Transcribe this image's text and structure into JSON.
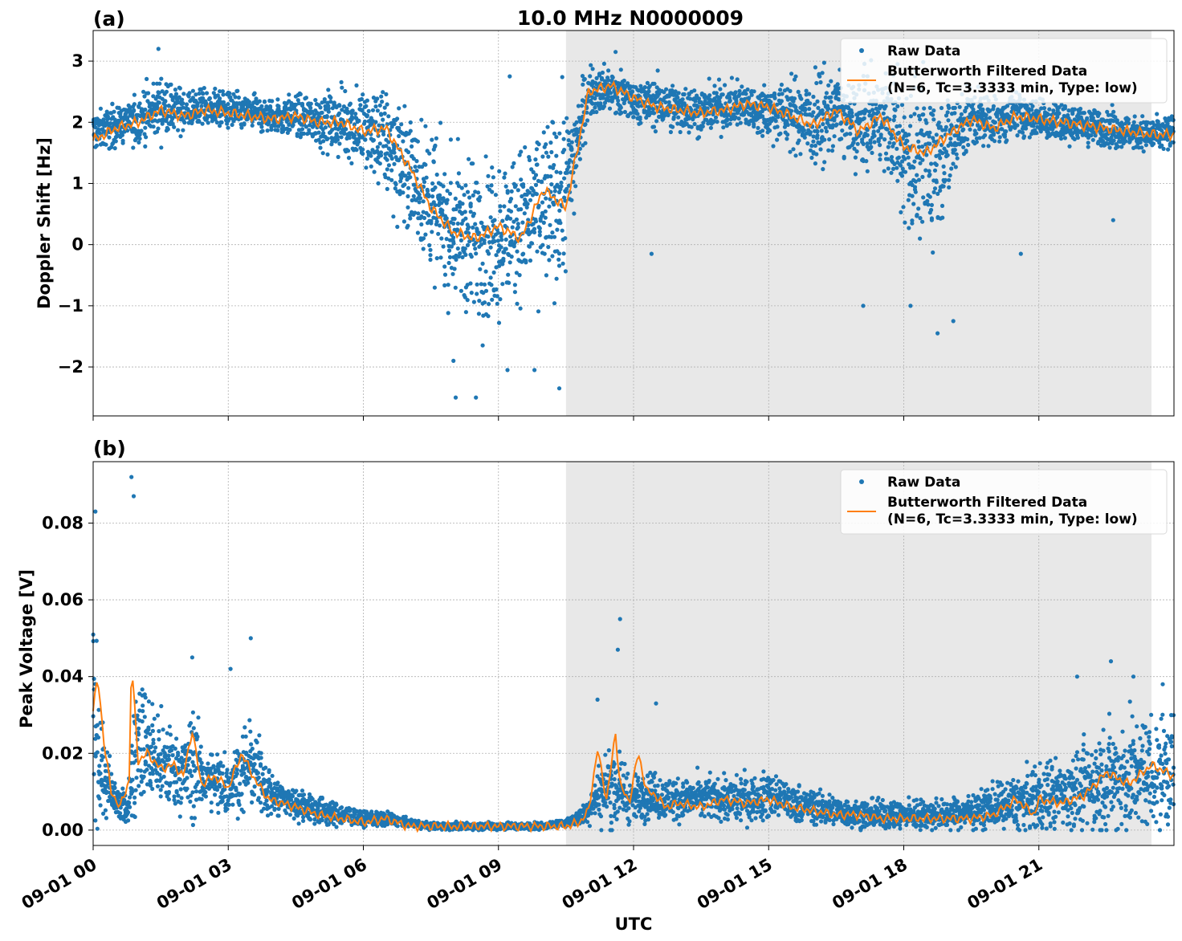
{
  "figure": {
    "title": "10.0 MHz N0000009",
    "xlabel": "UTC",
    "x_ticks": [
      "09-01 00",
      "09-01 03",
      "09-01 06",
      "09-01 09",
      "09-01 12",
      "09-01 15",
      "09-01 18",
      "09-01 21"
    ],
    "shaded_region_hours": [
      10.5,
      23.5
    ],
    "legend": {
      "raw_label": "Raw Data",
      "filtered_label_line1": "Butterworth Filtered Data",
      "filtered_label_line2": "(N=6, Tc=3.3333 min, Type: low)"
    },
    "colors": {
      "raw": "#1f77b4",
      "filtered": "#ff7f0e",
      "shade": "#e8e8e8",
      "grid": "#b0b0b0"
    }
  },
  "chart_data": [
    {
      "type": "scatter",
      "panel_label": "(a)",
      "title": "10.0 MHz N0000009",
      "xlabel": "",
      "ylabel": "Doppler Shift [Hz]",
      "xlim_hours": [
        0,
        24
      ],
      "ylim": [
        -2.8,
        3.5
      ],
      "y_ticks": [
        -2,
        -1,
        0,
        1,
        2,
        3
      ],
      "y_tick_labels": [
        "−2",
        "−1",
        "0",
        "1",
        "2",
        "3"
      ],
      "grid": true,
      "legend_position": "top-right",
      "series": [
        {
          "name": "Raw Data",
          "style": "points",
          "x_hours": [
            0,
            0.5,
            1,
            1.5,
            2,
            2.5,
            3,
            3.5,
            4,
            4.5,
            5,
            5.5,
            6,
            6.5,
            7,
            7.5,
            8,
            8.5,
            9,
            9.5,
            10,
            10.5,
            11,
            11.5,
            12,
            12.5,
            13,
            13.5,
            14,
            14.5,
            15,
            15.5,
            16,
            16.5,
            17,
            17.5,
            18,
            18.5,
            19,
            19.5,
            20,
            20.5,
            21,
            21.5,
            22,
            22.5,
            23,
            23.5,
            24
          ],
          "center": [
            1.85,
            1.95,
            2.05,
            2.25,
            2.2,
            2.25,
            2.2,
            2.15,
            2.1,
            2.1,
            2.05,
            2.0,
            1.9,
            1.7,
            1.2,
            0.7,
            0.25,
            0.15,
            0.1,
            0.35,
            0.6,
            0.9,
            2.5,
            2.55,
            2.35,
            2.3,
            2.25,
            2.2,
            2.25,
            2.25,
            2.2,
            2.15,
            2.0,
            2.2,
            1.9,
            2.1,
            1.6,
            1.3,
            1.7,
            2.1,
            2.0,
            2.15,
            2.05,
            2.0,
            1.95,
            1.9,
            1.85,
            1.8,
            1.8
          ],
          "spread": [
            0.35,
            0.35,
            0.4,
            0.5,
            0.35,
            0.3,
            0.3,
            0.3,
            0.3,
            0.35,
            0.45,
            0.55,
            0.7,
            0.9,
            1.1,
            1.2,
            1.3,
            1.3,
            1.3,
            1.3,
            1.4,
            1.5,
            0.4,
            0.4,
            0.4,
            0.45,
            0.4,
            0.4,
            0.4,
            0.4,
            0.5,
            0.6,
            0.8,
            0.6,
            0.8,
            0.7,
            1.2,
            1.4,
            1.0,
            0.6,
            0.5,
            0.4,
            0.35,
            0.35,
            0.35,
            0.3,
            0.3,
            0.3,
            0.3
          ],
          "outliers": [
            [
              1.45,
              3.2
            ],
            [
              8.05,
              -2.5
            ],
            [
              8.5,
              -2.5
            ],
            [
              8.0,
              -1.9
            ],
            [
              9.2,
              -2.05
            ],
            [
              10.35,
              -2.35
            ],
            [
              9.8,
              -2.05
            ],
            [
              9.25,
              2.75
            ],
            [
              11.6,
              3.15
            ],
            [
              12.4,
              -0.15
            ],
            [
              17.1,
              -1.0
            ],
            [
              18.15,
              -1.0
            ],
            [
              18.75,
              -1.45
            ],
            [
              19.1,
              -1.25
            ],
            [
              20.6,
              -0.15
            ],
            [
              22.65,
              0.4
            ]
          ]
        },
        {
          "name": "Butterworth Filtered Data",
          "style": "line",
          "x_hours": [
            0,
            0.5,
            1,
            1.5,
            2,
            2.5,
            3,
            3.5,
            4,
            4.5,
            5,
            5.5,
            6,
            6.5,
            7,
            7.5,
            8,
            8.5,
            9,
            9.5,
            10,
            10.5,
            11,
            11.5,
            12,
            12.5,
            13,
            13.5,
            14,
            14.5,
            15,
            15.5,
            16,
            16.5,
            17,
            17.5,
            18,
            18.5,
            19,
            19.5,
            20,
            20.5,
            21,
            21.5,
            22,
            22.5,
            23,
            23.5,
            24
          ],
          "y": [
            1.7,
            1.9,
            2.0,
            2.2,
            2.1,
            2.2,
            2.15,
            2.1,
            2.05,
            2.1,
            2.0,
            2.0,
            1.85,
            1.9,
            1.3,
            0.6,
            0.2,
            0.1,
            0.3,
            0.1,
            0.9,
            0.6,
            2.5,
            2.6,
            2.4,
            2.25,
            2.2,
            2.15,
            2.2,
            2.3,
            2.25,
            2.1,
            1.95,
            2.2,
            1.85,
            2.1,
            1.6,
            1.5,
            1.8,
            2.05,
            1.9,
            2.1,
            2.05,
            2.0,
            1.95,
            1.9,
            1.85,
            1.8,
            1.8
          ]
        }
      ]
    },
    {
      "type": "scatter",
      "panel_label": "(b)",
      "title": "",
      "xlabel": "UTC",
      "ylabel": "Peak Voltage [V]",
      "xlim_hours": [
        0,
        24
      ],
      "ylim": [
        -0.004,
        0.096
      ],
      "y_ticks": [
        0,
        0.02,
        0.04,
        0.06,
        0.08
      ],
      "y_tick_labels": [
        "0.00",
        "0.02",
        "0.04",
        "0.06",
        "0.08"
      ],
      "grid": true,
      "legend_position": "top-right",
      "series": [
        {
          "name": "Raw Data",
          "style": "points",
          "x_hours": [
            0,
            0.25,
            0.5,
            0.75,
            1,
            1.5,
            2,
            2.25,
            2.5,
            3,
            3.5,
            4,
            4.5,
            5,
            5.5,
            6,
            6.5,
            7,
            7.5,
            8,
            8.5,
            9,
            9.5,
            10,
            10.5,
            10.9,
            11.2,
            11.5,
            11.75,
            12,
            12.3,
            12.6,
            13,
            13.5,
            14,
            14.5,
            15,
            15.5,
            16,
            16.5,
            17,
            17.5,
            18,
            18.5,
            19,
            19.5,
            20,
            20.5,
            21,
            21.5,
            22,
            22.5,
            23,
            23.5,
            24
          ],
          "center": [
            0.03,
            0.012,
            0.008,
            0.005,
            0.025,
            0.017,
            0.015,
            0.018,
            0.013,
            0.012,
            0.017,
            0.009,
            0.007,
            0.005,
            0.004,
            0.003,
            0.003,
            0.002,
            0.001,
            0.001,
            0.001,
            0.001,
            0.001,
            0.001,
            0.002,
            0.004,
            0.009,
            0.012,
            0.01,
            0.008,
            0.01,
            0.008,
            0.008,
            0.008,
            0.008,
            0.008,
            0.009,
            0.007,
            0.006,
            0.005,
            0.004,
            0.004,
            0.004,
            0.004,
            0.004,
            0.005,
            0.006,
            0.007,
            0.008,
            0.01,
            0.011,
            0.013,
            0.014,
            0.015,
            0.016
          ],
          "spread": [
            0.025,
            0.012,
            0.006,
            0.004,
            0.02,
            0.012,
            0.01,
            0.015,
            0.008,
            0.009,
            0.012,
            0.006,
            0.005,
            0.004,
            0.003,
            0.002,
            0.002,
            0.001,
            0.001,
            0.001,
            0.001,
            0.001,
            0.001,
            0.001,
            0.001,
            0.003,
            0.008,
            0.012,
            0.009,
            0.006,
            0.008,
            0.006,
            0.006,
            0.006,
            0.006,
            0.006,
            0.007,
            0.005,
            0.005,
            0.004,
            0.004,
            0.004,
            0.004,
            0.004,
            0.004,
            0.005,
            0.006,
            0.008,
            0.009,
            0.011,
            0.012,
            0.014,
            0.016,
            0.016,
            0.017
          ],
          "outliers": [
            [
              0.05,
              0.083
            ],
            [
              0.85,
              0.092
            ],
            [
              0.9,
              0.087
            ],
            [
              2.2,
              0.045
            ],
            [
              3.05,
              0.042
            ],
            [
              3.5,
              0.05
            ],
            [
              11.7,
              0.055
            ],
            [
              11.65,
              0.047
            ],
            [
              11.2,
              0.034
            ],
            [
              12.5,
              0.033
            ],
            [
              13.7,
              0.015
            ],
            [
              21.85,
              0.04
            ],
            [
              22.6,
              0.044
            ],
            [
              23.1,
              0.04
            ],
            [
              23.75,
              0.038
            ]
          ]
        },
        {
          "name": "Butterworth Filtered Data",
          "style": "line",
          "x_hours": [
            0,
            0.1,
            0.25,
            0.4,
            0.6,
            0.8,
            0.85,
            1.0,
            1.2,
            1.5,
            1.8,
            2.0,
            2.2,
            2.4,
            2.7,
            3.0,
            3.3,
            3.6,
            3.9,
            4.2,
            4.5,
            5.0,
            5.5,
            6.0,
            6.5,
            7.0,
            7.5,
            8.0,
            8.5,
            9.0,
            9.5,
            10.0,
            10.5,
            10.8,
            11.0,
            11.2,
            11.4,
            11.6,
            11.7,
            11.9,
            12.1,
            12.3,
            12.5,
            12.7,
            13.0,
            13.5,
            14.0,
            14.5,
            15.0,
            15.5,
            16.0,
            16.5,
            17.0,
            17.5,
            18.0,
            18.5,
            19.0,
            19.5,
            20.0,
            20.5,
            20.9,
            21.0,
            21.5,
            22.0,
            22.5,
            23.0,
            23.5,
            24.0
          ],
          "y": [
            0.031,
            0.04,
            0.022,
            0.01,
            0.006,
            0.013,
            0.044,
            0.018,
            0.02,
            0.016,
            0.017,
            0.014,
            0.026,
            0.012,
            0.014,
            0.011,
            0.02,
            0.013,
            0.008,
            0.007,
            0.006,
            0.004,
            0.003,
            0.002,
            0.003,
            0.001,
            0.001,
            0.001,
            0.001,
            0.001,
            0.001,
            0.001,
            0.001,
            0.002,
            0.005,
            0.021,
            0.008,
            0.025,
            0.012,
            0.007,
            0.02,
            0.01,
            0.009,
            0.006,
            0.007,
            0.006,
            0.008,
            0.007,
            0.008,
            0.006,
            0.005,
            0.004,
            0.004,
            0.003,
            0.003,
            0.003,
            0.003,
            0.003,
            0.004,
            0.008,
            0.004,
            0.008,
            0.007,
            0.009,
            0.015,
            0.012,
            0.017,
            0.014
          ]
        }
      ]
    }
  ]
}
